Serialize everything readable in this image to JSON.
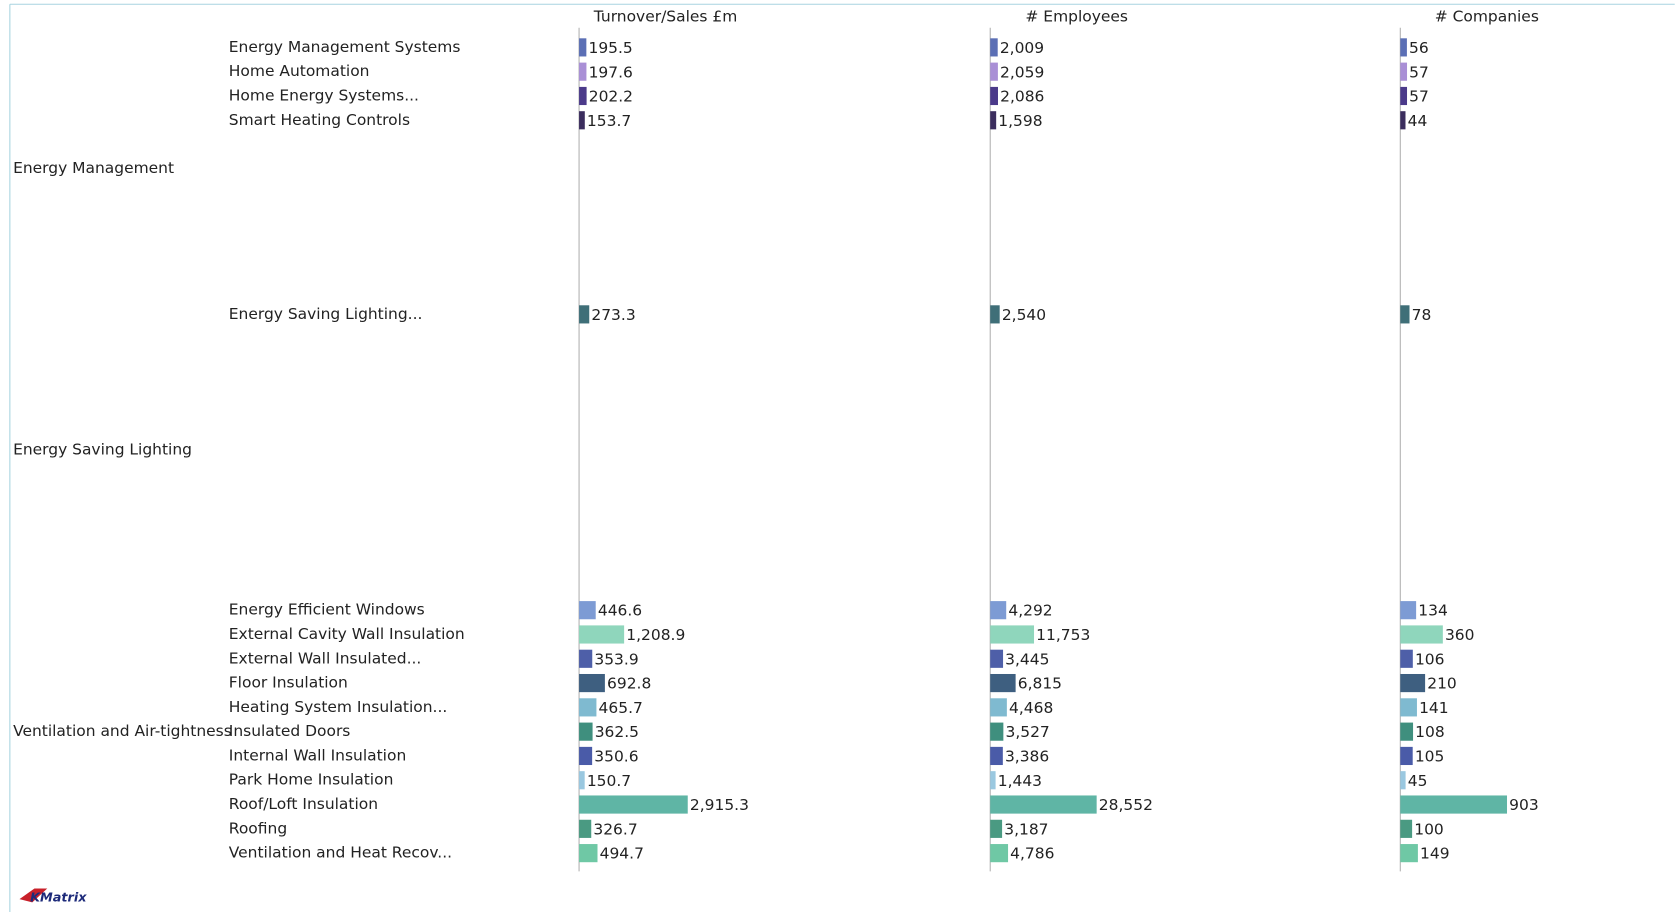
{
  "chart_data": {
    "type": "bar",
    "groups": [
      {
        "name": "Energy Management",
        "categories": [
          "Energy Management Systems",
          "Home Automation",
          "Home Energy Systems...",
          "Smart Heating Controls"
        ],
        "colors": [
          "#5b6fb5",
          "#a98fd6",
          "#4b3a8a",
          "#3b2d5e"
        ]
      },
      {
        "name": "Energy Saving Lighting",
        "categories": [
          "Energy Saving Lighting..."
        ],
        "colors": [
          "#3f6f78"
        ]
      },
      {
        "name": "Ventilation and Air-tightness",
        "categories": [
          "Energy Efficient Windows",
          "External Cavity Wall Insulation",
          "External Wall Insulated...",
          "Floor Insulation",
          "Heating System Insulation...",
          "Insulated Doors",
          "Internal Wall Insulation",
          "Park Home Insulation",
          "Roof/Loft Insulation",
          "Roofing",
          "Ventilation and Heat Recov..."
        ],
        "colors": [
          "#7d9bd4",
          "#8fd6bc",
          "#4e5fa8",
          "#3e5f80",
          "#7fbad0",
          "#3f8f7e",
          "#4a5ba8",
          "#9ac8e0",
          "#5fb5a5",
          "#4a9a82",
          "#6fc8a5"
        ]
      }
    ],
    "series": [
      {
        "name": "Turnover/Sales £m",
        "xlim": [
          0,
          11000
        ],
        "values": [
          [
            195.5,
            197.6,
            202.2,
            153.7
          ],
          [
            273.3
          ],
          [
            446.6,
            1208.9,
            353.9,
            692.8,
            465.7,
            362.5,
            350.6,
            150.7,
            2915.3,
            326.7,
            494.7
          ]
        ],
        "value_labels": [
          [
            "195.5",
            "197.6",
            "202.2",
            "153.7"
          ],
          [
            "273.3"
          ],
          [
            "446.6",
            "1,208.9",
            "353.9",
            "692.8",
            "465.7",
            "362.5",
            "350.6",
            "150.7",
            "2,915.3",
            "326.7",
            "494.7"
          ]
        ]
      },
      {
        "name": "# Employees",
        "xlim": [
          0,
          110000
        ],
        "values": [
          [
            2009,
            2059,
            2086,
            1598
          ],
          [
            2540
          ],
          [
            4292,
            11753,
            3445,
            6815,
            4468,
            3527,
            3386,
            1443,
            28552,
            3187,
            4786
          ]
        ],
        "value_labels": [
          [
            "2,009",
            "2,059",
            "2,086",
            "1,598"
          ],
          [
            "2,540"
          ],
          [
            "4,292",
            "11,753",
            "3,445",
            "6,815",
            "4,468",
            "3,527",
            "3,386",
            "1,443",
            "28,552",
            "3,187",
            "4,786"
          ]
        ]
      },
      {
        "name": "# Companies",
        "xlim": [
          0,
          3470
        ],
        "values": [
          [
            56,
            57,
            57,
            44
          ],
          [
            78
          ],
          [
            134,
            360,
            106,
            210,
            141,
            108,
            105,
            45,
            903,
            100,
            149
          ]
        ]
      }
    ],
    "logo": "KMatrix"
  }
}
